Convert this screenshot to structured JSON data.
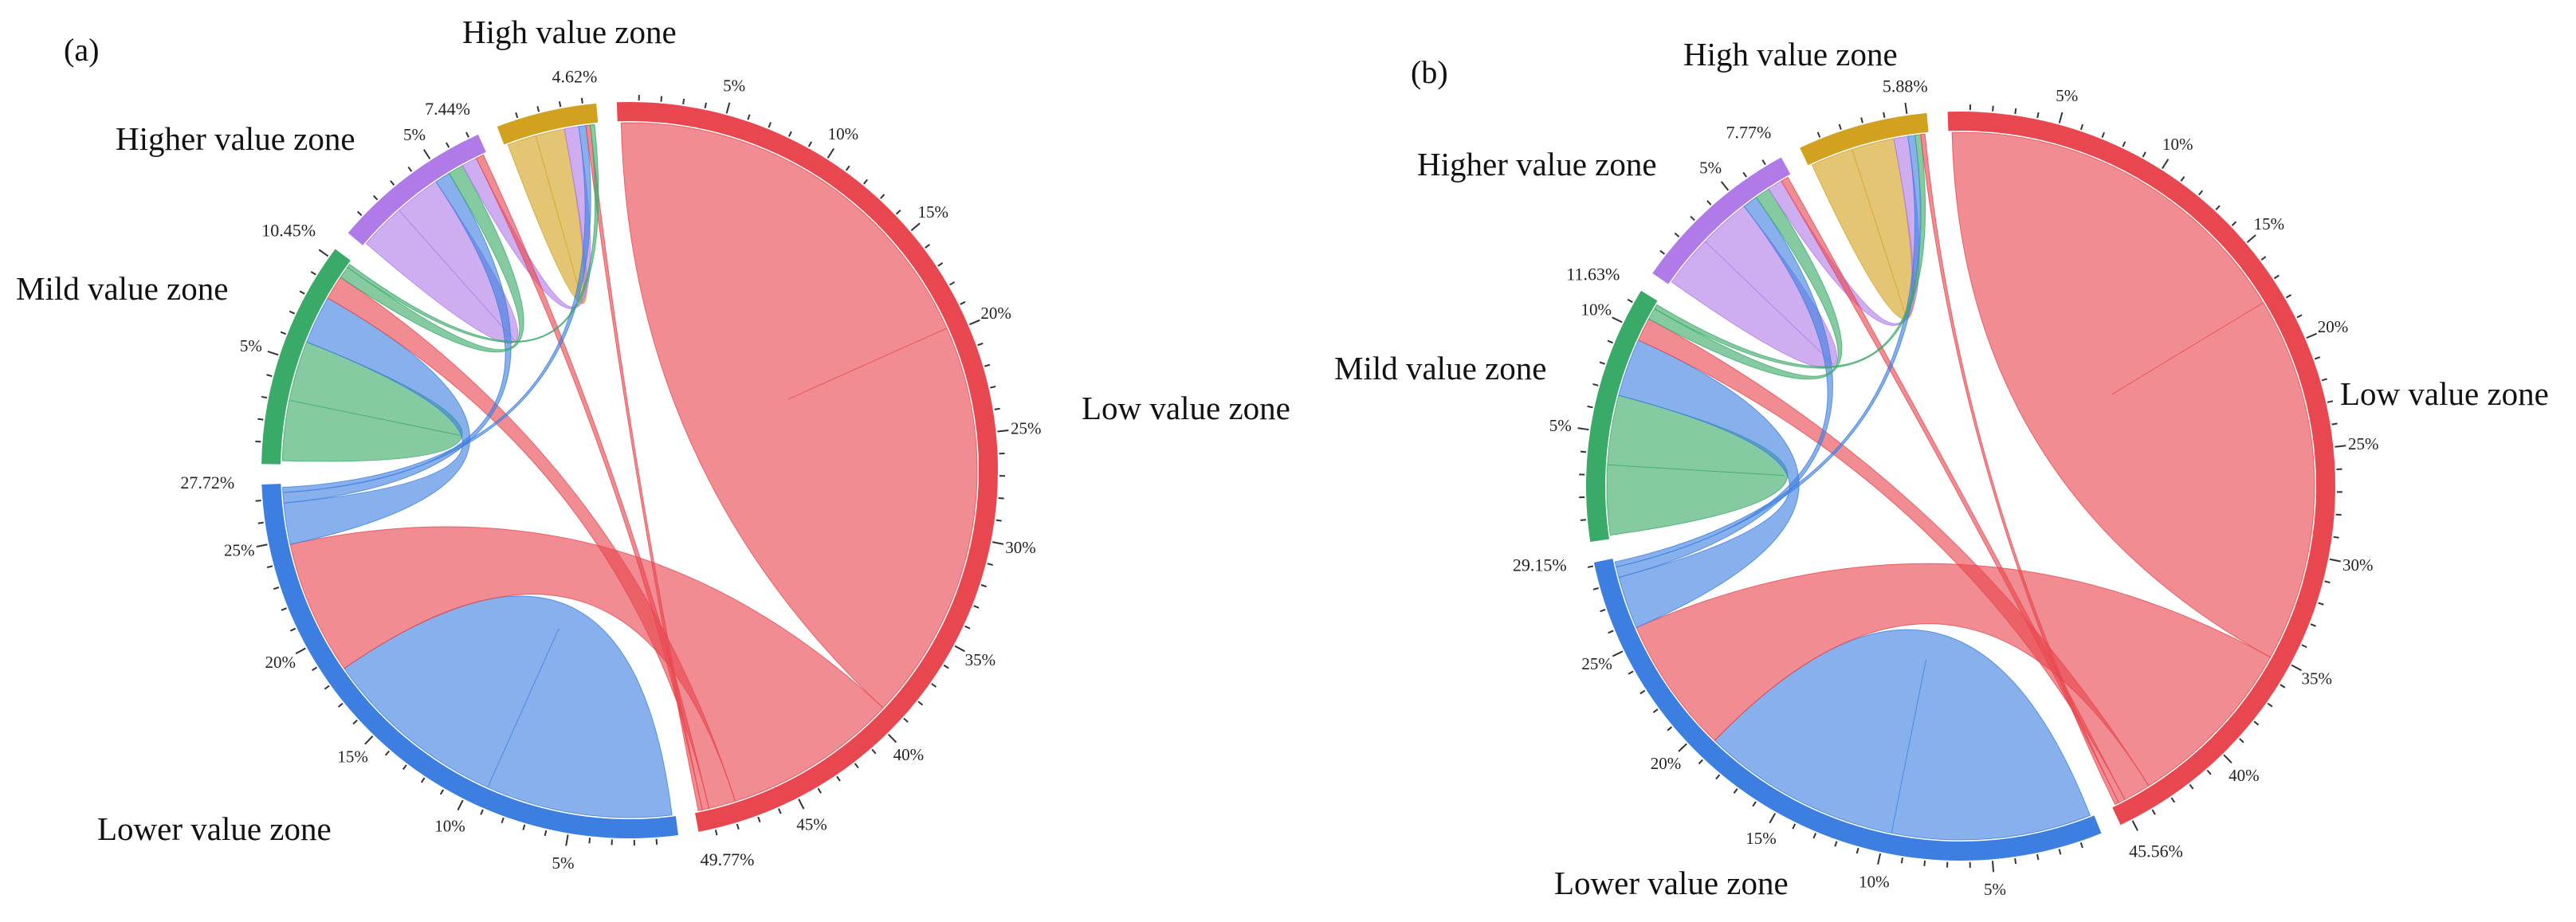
{
  "figure": {
    "description_free": true,
    "colors": {
      "Low value zone": "#e8474f",
      "Lower value zone": "#3d7fe0",
      "Mild value zone": "#3aaa68",
      "Higher value zone": "#b07ae8",
      "High value zone": "#d2a11f"
    },
    "panels": [
      {
        "panel_label": "(a)",
        "zones": [
          {
            "name": "Low value zone",
            "share_label": "49.77%",
            "ticks": [
              "5%",
              "10%",
              "15%",
              "20%",
              "25%",
              "30%",
              "35%",
              "40%",
              "45%"
            ]
          },
          {
            "name": "Lower value zone",
            "share_label": "27.72%",
            "ticks": [
              "5%",
              "10%",
              "15%",
              "20%",
              "25%"
            ]
          },
          {
            "name": "Mild value zone",
            "share_label": "10.45%",
            "ticks": [
              "5%"
            ]
          },
          {
            "name": "Higher value zone",
            "share_label": "7.44%",
            "ticks": [
              "5%"
            ]
          },
          {
            "name": "High value zone",
            "share_label": "4.62%",
            "ticks": []
          }
        ],
        "flows": [
          {
            "from": "Low value zone",
            "to": "Low value zone",
            "weight": 30
          },
          {
            "from": "Low value zone",
            "to": "Lower value zone",
            "weight": 13
          },
          {
            "from": "Low value zone",
            "to": "Mild value zone",
            "weight": 2
          },
          {
            "from": "Low value zone",
            "to": "Higher value zone",
            "weight": 0.5
          },
          {
            "from": "Low value zone",
            "to": "High value zone",
            "weight": 0.3
          },
          {
            "from": "Lower value zone",
            "to": "Lower value zone",
            "weight": 18
          },
          {
            "from": "Lower value zone",
            "to": "Mild value zone",
            "weight": 4
          },
          {
            "from": "Lower value zone",
            "to": "Higher value zone",
            "weight": 1
          },
          {
            "from": "Lower value zone",
            "to": "High value zone",
            "weight": 0.5
          },
          {
            "from": "Mild value zone",
            "to": "Mild value zone",
            "weight": 5
          },
          {
            "from": "Mild value zone",
            "to": "Higher value zone",
            "weight": 1
          },
          {
            "from": "Mild value zone",
            "to": "High value zone",
            "weight": 0.3
          },
          {
            "from": "Higher value zone",
            "to": "Higher value zone",
            "weight": 3
          },
          {
            "from": "Higher value zone",
            "to": "High value zone",
            "weight": 1
          },
          {
            "from": "High value zone",
            "to": "High value zone",
            "weight": 2
          }
        ]
      },
      {
        "panel_label": "(b)",
        "zones": [
          {
            "name": "Low value zone",
            "share_label": "45.56%",
            "ticks": [
              "5%",
              "10%",
              "15%",
              "20%",
              "25%",
              "30%",
              "35%",
              "40%"
            ]
          },
          {
            "name": "Lower value zone",
            "share_label": "29.15%",
            "ticks": [
              "5%",
              "10%",
              "15%",
              "20%",
              "25%"
            ]
          },
          {
            "name": "Mild value zone",
            "share_label": "11.63%",
            "ticks": [
              "5%",
              "10%"
            ]
          },
          {
            "name": "Higher value zone",
            "share_label": "7.77%",
            "ticks": [
              "5%"
            ]
          },
          {
            "name": "High value zone",
            "share_label": "5.88%",
            "ticks": []
          }
        ],
        "flows": [
          {
            "from": "Low value zone",
            "to": "Low value zone",
            "weight": 27
          },
          {
            "from": "Low value zone",
            "to": "Lower value zone",
            "weight": 13
          },
          {
            "from": "Low value zone",
            "to": "Mild value zone",
            "weight": 2
          },
          {
            "from": "Low value zone",
            "to": "Higher value zone",
            "weight": 0.5
          },
          {
            "from": "Low value zone",
            "to": "High value zone",
            "weight": 0.3
          },
          {
            "from": "Lower value zone",
            "to": "Lower value zone",
            "weight": 19
          },
          {
            "from": "Lower value zone",
            "to": "Mild value zone",
            "weight": 5
          },
          {
            "from": "Lower value zone",
            "to": "Higher value zone",
            "weight": 1
          },
          {
            "from": "Lower value zone",
            "to": "High value zone",
            "weight": 0.5
          },
          {
            "from": "Mild value zone",
            "to": "Mild value zone",
            "weight": 6
          },
          {
            "from": "Mild value zone",
            "to": "Higher value zone",
            "weight": 1
          },
          {
            "from": "Mild value zone",
            "to": "High value zone",
            "weight": 0.4
          },
          {
            "from": "Higher value zone",
            "to": "Higher value zone",
            "weight": 3.5
          },
          {
            "from": "Higher value zone",
            "to": "High value zone",
            "weight": 1
          },
          {
            "from": "High value zone",
            "to": "High value zone",
            "weight": 3
          }
        ]
      }
    ]
  }
}
